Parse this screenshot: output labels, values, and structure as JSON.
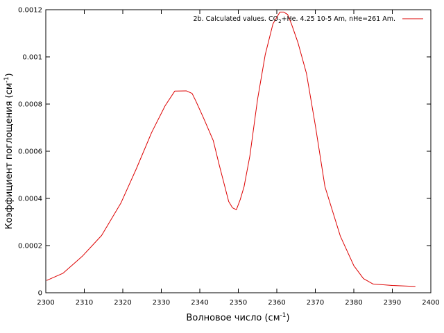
{
  "chart_data": {
    "type": "line",
    "title": "",
    "xlabel": "Волновое число (см",
    "xlabel_sup": "-1",
    "xlabel_end": ")",
    "ylabel": "Коэффициент поглощения (см",
    "ylabel_sup": "-1",
    "ylabel_end": ")",
    "xlim": [
      2300,
      2400
    ],
    "ylim": [
      0,
      0.0012
    ],
    "xticks": [
      "2300",
      "2310",
      "2320",
      "2330",
      "2340",
      "2350",
      "2360",
      "2370",
      "2380",
      "2390",
      "2400"
    ],
    "yticks": [
      "0",
      "0.0002",
      "0.0004",
      "0.0006",
      "0.0008",
      "0.001",
      "0.0012"
    ],
    "grid": false,
    "legend_position": "top-right",
    "legend": {
      "part1": "2b. Calculated values. CO",
      "sub": "2",
      "part2": "+He. 4.25 10-5 Am, nHe=261 Am."
    },
    "series": [
      {
        "color": "#dd0000",
        "x": [
          2300.2,
          2304.5,
          2309.5,
          2314.5,
          2319.5,
          2323.5,
          2327.5,
          2331.0,
          2333.5,
          2336.5,
          2338.0,
          2339.0,
          2341.0,
          2343.5,
          2345.0,
          2347.5,
          2348.5,
          2349.5,
          2350.5,
          2351.5,
          2353.0,
          2355.0,
          2357.0,
          2359.0,
          2360.8,
          2361.8,
          2362.8,
          2363.8,
          2365.5,
          2367.7,
          2370.0,
          2372.5,
          2376.5,
          2380.0,
          2382.5,
          2385.0,
          2390.0,
          2396.0
        ],
        "y": [
          5.2e-05,
          8.3e-05,
          0.000155,
          0.000243,
          0.00038,
          0.000525,
          0.00068,
          0.000793,
          0.000855,
          0.000856,
          0.000845,
          0.000812,
          0.00074,
          0.000645,
          0.000545,
          0.000387,
          0.00036,
          0.000352,
          0.000395,
          0.00045,
          0.00058,
          0.00082,
          0.00101,
          0.00114,
          0.00119,
          0.00119,
          0.00118,
          0.00114,
          0.00106,
          0.00093,
          0.00071,
          0.00045,
          0.00024,
          0.000115,
          6e-05,
          3.7e-05,
          3.1e-05,
          2.7e-05
        ]
      }
    ]
  }
}
